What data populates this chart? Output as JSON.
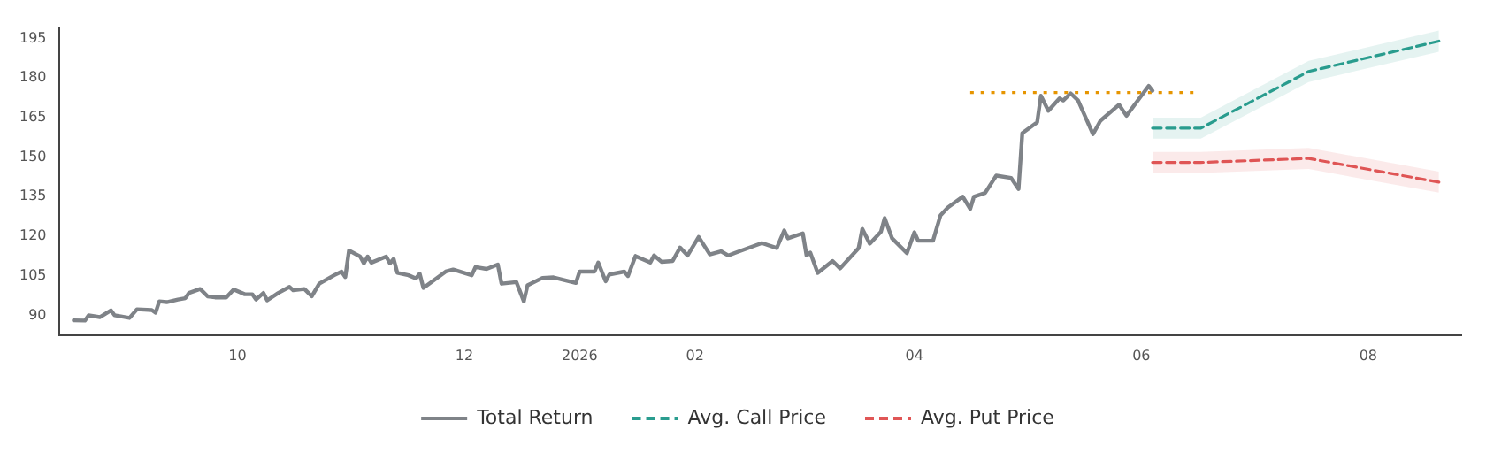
{
  "chart_data": {
    "type": "line",
    "xlim": [
      "2025-08-14",
      "2026-08-26"
    ],
    "ylim": [
      82.5,
      199
    ],
    "xticks": [
      {
        "value": "2025-10",
        "label": "10"
      },
      {
        "value": "2025-12",
        "label": "12"
      },
      {
        "value": "2026-01",
        "label": "2026"
      },
      {
        "value": "2026-02",
        "label": "02"
      },
      {
        "value": "2026-04",
        "label": "04"
      },
      {
        "value": "2026-06",
        "label": "06"
      },
      {
        "value": "2026-08",
        "label": "08"
      }
    ],
    "yticks": [
      90,
      105,
      120,
      135,
      150,
      165,
      180,
      195
    ],
    "grid": false,
    "legend": "bottom",
    "marker": "none",
    "series": [
      {
        "name": "Total Return",
        "color": "#7f8388",
        "line_style": "solid",
        "x": [
          "2025-08-18",
          "2025-08-21",
          "2025-08-22",
          "2025-08-25",
          "2025-08-28",
          "2025-08-29",
          "2025-09-02",
          "2025-09-04",
          "2025-09-08",
          "2025-09-09",
          "2025-09-10",
          "2025-09-12",
          "2025-09-15",
          "2025-09-17",
          "2025-09-18",
          "2025-09-21",
          "2025-09-23",
          "2025-09-25",
          "2025-09-28",
          "2025-09-30",
          "2025-10-03",
          "2025-10-05",
          "2025-10-06",
          "2025-10-08",
          "2025-10-09",
          "2025-10-12",
          "2025-10-15",
          "2025-10-16",
          "2025-10-19",
          "2025-10-21",
          "2025-10-23",
          "2025-10-27",
          "2025-10-29",
          "2025-10-30",
          "2025-10-31",
          "2025-11-03",
          "2025-11-04",
          "2025-11-05",
          "2025-11-06",
          "2025-11-10",
          "2025-11-11",
          "2025-11-12",
          "2025-11-13",
          "2025-11-16",
          "2025-11-18",
          "2025-11-19",
          "2025-11-20",
          "2025-11-26",
          "2025-11-28",
          "2025-12-03",
          "2025-12-04",
          "2025-12-07",
          "2025-12-10",
          "2025-12-11",
          "2025-12-15",
          "2025-12-17",
          "2025-12-18",
          "2025-12-22",
          "2025-12-25",
          "2025-12-31",
          "2026-01-01",
          "2026-01-05",
          "2026-01-06",
          "2026-01-08",
          "2026-01-09",
          "2026-01-13",
          "2026-01-14",
          "2026-01-16",
          "2026-01-20",
          "2026-01-21",
          "2026-01-23",
          "2026-01-26",
          "2026-01-28",
          "2026-01-30",
          "2026-02-02",
          "2026-02-05",
          "2026-02-08",
          "2026-02-10",
          "2026-02-12",
          "2026-02-19",
          "2026-02-23",
          "2026-02-25",
          "2026-02-26",
          "2026-03-02",
          "2026-03-03",
          "2026-03-04",
          "2026-03-06",
          "2026-03-10",
          "2026-03-12",
          "2026-03-17",
          "2026-03-18",
          "2026-03-20",
          "2026-03-23",
          "2026-03-24",
          "2026-03-26",
          "2026-03-30",
          "2026-04-01",
          "2026-04-02",
          "2026-04-06",
          "2026-04-08",
          "2026-04-10",
          "2026-04-14",
          "2026-04-16",
          "2026-04-17",
          "2026-04-20",
          "2026-04-23",
          "2026-04-27",
          "2026-04-29",
          "2026-04-30",
          "2026-05-04",
          "2026-05-05",
          "2026-05-07",
          "2026-05-10",
          "2026-05-11",
          "2026-05-13",
          "2026-05-15",
          "2026-05-19",
          "2026-05-21",
          "2026-05-26",
          "2026-05-28",
          "2026-06-01",
          "2026-06-03",
          "2026-06-04"
        ],
        "values": [
          88.1,
          88,
          90,
          89.3,
          91.9,
          90,
          89,
          92.3,
          92,
          91,
          95.3,
          95,
          96,
          96.5,
          98.5,
          100,
          97.2,
          96.8,
          96.8,
          99.8,
          98,
          98,
          96,
          98.5,
          95.7,
          98.5,
          100.8,
          99.5,
          100,
          97.2,
          102,
          105.2,
          106.6,
          104.5,
          114.6,
          112.3,
          109.7,
          112.3,
          110,
          112.3,
          109.7,
          111.4,
          106.1,
          105.2,
          104,
          105.8,
          100.4,
          106.6,
          107.4,
          105.2,
          108.3,
          107.6,
          109.3,
          102,
          102.6,
          95.3,
          101.4,
          104.2,
          104.4,
          102.3,
          106.6,
          106.6,
          110,
          102.9,
          105.5,
          106.6,
          104.9,
          112.5,
          110,
          112.7,
          110.3,
          110.6,
          115.7,
          112.7,
          119.7,
          113.1,
          114.3,
          112.7,
          113.8,
          117.4,
          115.5,
          122.2,
          119.2,
          121.1,
          112.7,
          113.8,
          106.1,
          110.6,
          107.8,
          115.5,
          122.8,
          117.2,
          121.7,
          126.9,
          119.2,
          113.6,
          121.5,
          118.3,
          118.3,
          127.9,
          130.9,
          135,
          130.4,
          135,
          136.4,
          143,
          142.1,
          137.9,
          159.1,
          163.2,
          173.3,
          167.6,
          172.3,
          171.5,
          174.2,
          171.5,
          158.7,
          163.8,
          169.9,
          165.7,
          173.3,
          177,
          175.2
        ]
      },
      {
        "color": "#e69500",
        "line_style": "dotted",
        "x": [
          "2026-04-16",
          "2026-06-15"
        ],
        "values": [
          174.5,
          174.5
        ]
      },
      {
        "name": "Avg. Call Price",
        "color": "#2a9d8f",
        "line_style": "dashed",
        "x": [
          "2026-06-04",
          "2026-06-17",
          "2026-07-16",
          "2026-08-20"
        ],
        "values": [
          161,
          161,
          182.5,
          194
        ],
        "lower": [
          157,
          157,
          178.5,
          190
        ],
        "upper": [
          165,
          165,
          186.5,
          198
        ]
      },
      {
        "name": "Avg. Put Price",
        "color": "#e05656",
        "line_style": "dashed",
        "x": [
          "2026-06-04",
          "2026-06-17",
          "2026-07-16",
          "2026-08-20"
        ],
        "values": [
          148,
          148,
          149.5,
          140.5
        ],
        "lower": [
          144,
          144,
          145.5,
          136.5
        ],
        "upper": [
          152,
          152,
          153.5,
          144.5
        ]
      }
    ]
  }
}
